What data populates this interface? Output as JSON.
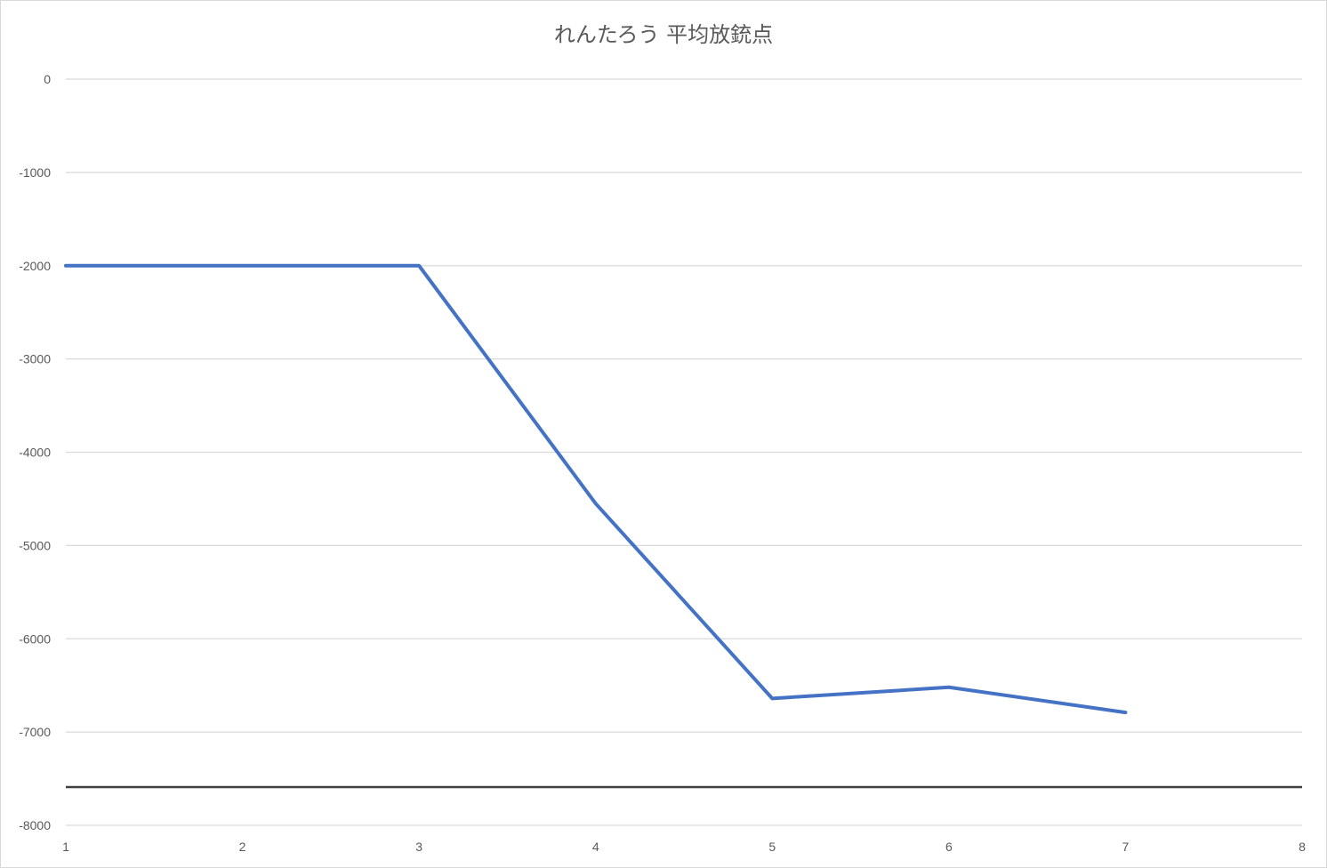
{
  "chart_data": {
    "type": "line",
    "title": "れんたろう 平均放銃点",
    "x": [
      1,
      2,
      3,
      4,
      5,
      6,
      7
    ],
    "series": [
      {
        "values": [
          -2000,
          -2000,
          -2000,
          -4550,
          -6640,
          -6520,
          -6790
        ]
      }
    ],
    "xlim": [
      1,
      8
    ],
    "ylim": [
      -8000,
      0
    ],
    "x_ticks": [
      "1",
      "2",
      "3",
      "4",
      "5",
      "6",
      "7",
      "8"
    ],
    "y_ticks": [
      "0",
      "-1000",
      "-2000",
      "-3000",
      "-4000",
      "-5000",
      "-6000",
      "-7000",
      "-8000"
    ],
    "horizontal_axis_at": -7590,
    "grid": true,
    "legend": "none",
    "colors": {
      "line": "#4472c4",
      "grid": "#d9d9d9",
      "axis": "#404040",
      "text": "#595959"
    }
  }
}
